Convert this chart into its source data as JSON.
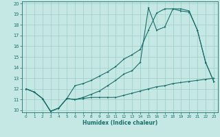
{
  "xlabel": "Humidex (Indice chaleur)",
  "bg_color": "#c5e8e4",
  "grid_color": "#9ececa",
  "line_color": "#1a6e6a",
  "xlim": [
    -0.5,
    23.5
  ],
  "ylim": [
    9.8,
    20.2
  ],
  "yticks": [
    10,
    11,
    12,
    13,
    14,
    15,
    16,
    17,
    18,
    19,
    20
  ],
  "xticks": [
    0,
    1,
    2,
    3,
    4,
    5,
    6,
    7,
    8,
    9,
    10,
    11,
    12,
    13,
    14,
    15,
    16,
    17,
    18,
    19,
    20,
    21,
    22,
    23
  ],
  "series1_x": [
    0,
    1,
    2,
    3,
    4,
    5,
    6,
    7,
    8,
    9,
    10,
    11,
    12,
    13,
    14,
    15,
    16,
    17,
    18,
    19,
    20,
    21,
    22,
    23
  ],
  "series1_y": [
    12.0,
    11.7,
    11.1,
    9.9,
    10.2,
    11.1,
    11.0,
    11.1,
    11.2,
    11.2,
    11.2,
    11.2,
    11.4,
    11.6,
    11.8,
    12.0,
    12.2,
    12.3,
    12.5,
    12.6,
    12.7,
    12.8,
    12.9,
    13.0
  ],
  "series2_x": [
    0,
    1,
    2,
    3,
    4,
    5,
    6,
    7,
    8,
    9,
    10,
    11,
    12,
    13,
    14,
    15,
    16,
    17,
    18,
    19,
    20,
    21,
    22,
    23
  ],
  "series2_y": [
    12.0,
    11.7,
    11.1,
    9.9,
    10.2,
    11.1,
    11.0,
    11.2,
    11.5,
    11.8,
    12.3,
    12.8,
    13.4,
    13.7,
    14.5,
    19.6,
    17.5,
    17.8,
    19.5,
    19.3,
    19.2,
    17.5,
    14.5,
    12.7
  ],
  "series3_x": [
    0,
    1,
    2,
    3,
    4,
    5,
    6,
    7,
    8,
    9,
    10,
    11,
    12,
    13,
    14,
    15,
    16,
    17,
    18,
    19,
    20,
    21,
    22,
    23
  ],
  "series3_y": [
    12.0,
    11.7,
    11.1,
    9.9,
    10.2,
    11.1,
    12.3,
    12.5,
    12.8,
    13.2,
    13.6,
    14.1,
    14.8,
    15.2,
    15.7,
    17.5,
    19.1,
    19.5,
    19.5,
    19.5,
    19.3,
    17.5,
    14.5,
    12.7
  ]
}
